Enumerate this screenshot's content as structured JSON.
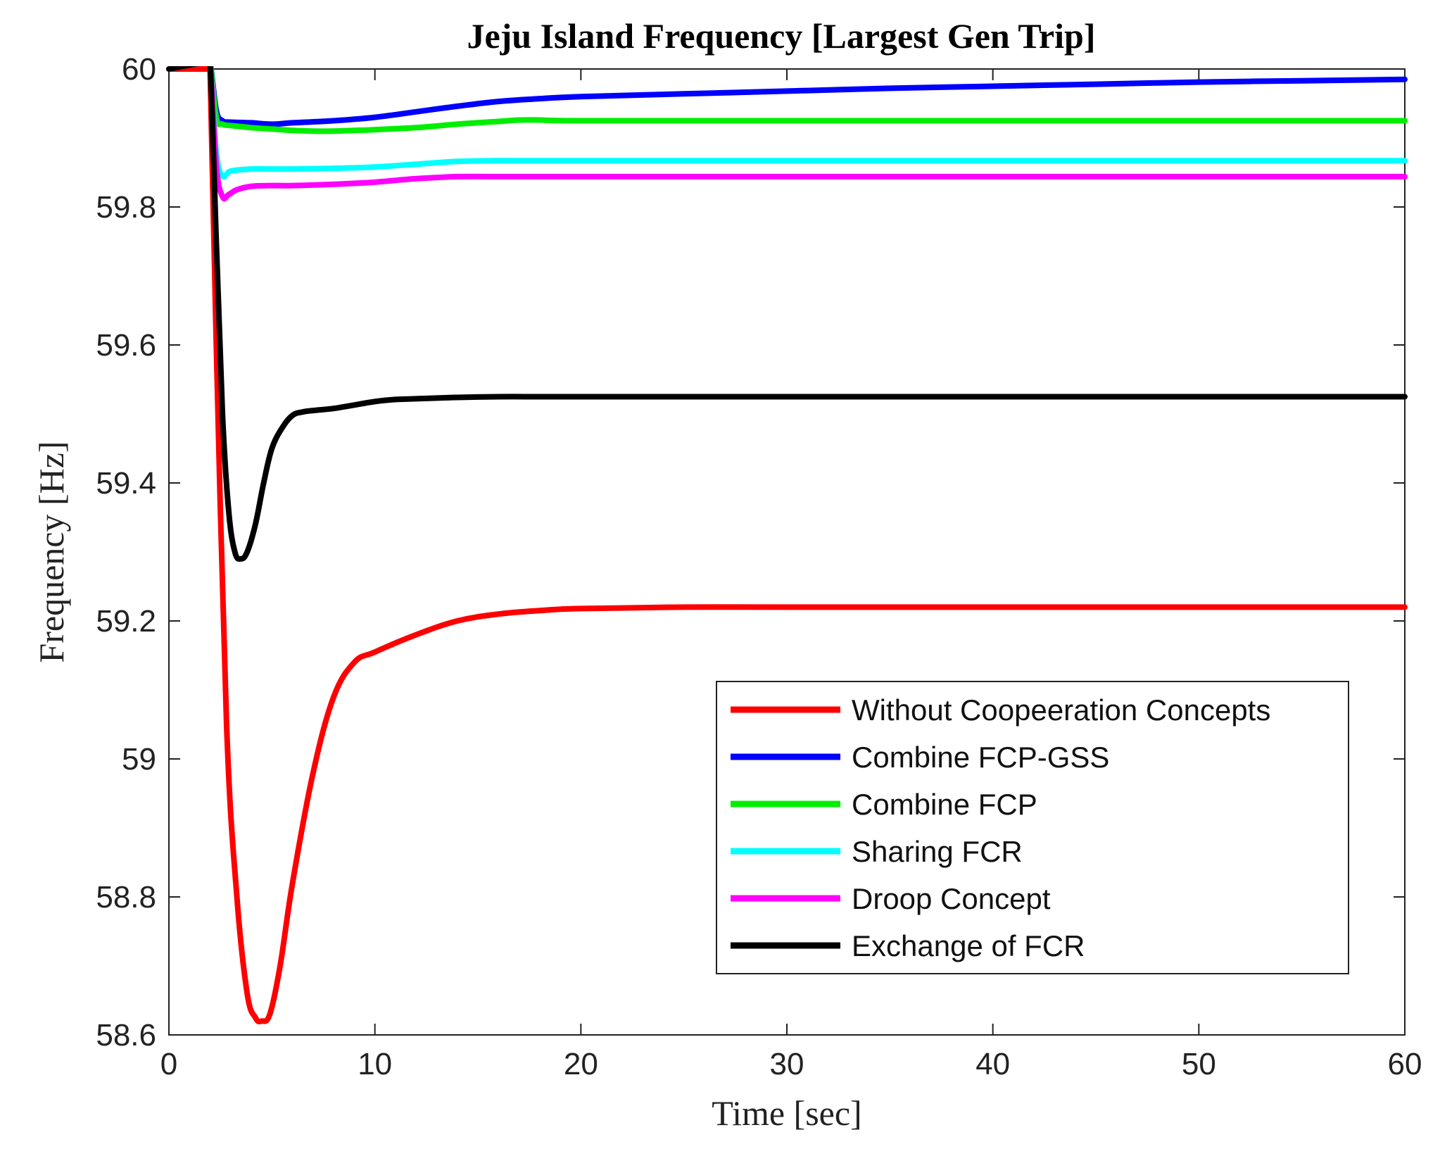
{
  "chart_data": {
    "type": "line",
    "title": "Jeju Island Frequency [Largest Gen Trip]",
    "xlabel": "Time [sec]",
    "ylabel": "Frequency [Hz]",
    "xlim": [
      0,
      60
    ],
    "ylim": [
      58.6,
      60.0
    ],
    "xticks": [
      0,
      10,
      20,
      30,
      40,
      50,
      60
    ],
    "xtick_labels": [
      "0",
      "10",
      "20",
      "30",
      "40",
      "50",
      "60"
    ],
    "yticks": [
      58.6,
      58.8,
      59.0,
      59.2,
      59.4,
      59.6,
      59.8,
      60.0
    ],
    "ytick_labels": [
      "58.6",
      "58.8",
      "59",
      "59.2",
      "59.4",
      "59.6",
      "59.8",
      "60"
    ],
    "grid": false,
    "legend_position": "bottom-right",
    "series": [
      {
        "name": "Without Coopeeration Concepts",
        "color": "#ff0000",
        "x": [
          0,
          1.8,
          2.0,
          2.3,
          2.8,
          3.3,
          3.8,
          4.2,
          4.5,
          4.9,
          5.4,
          6.0,
          7.0,
          8.0,
          9.0,
          10.0,
          12.0,
          14.0,
          16.0,
          18.0,
          20.0,
          25.0,
          30.0,
          40.0,
          50.0,
          60.0
        ],
        "y": [
          60.0,
          60.0,
          60.0,
          59.6,
          59.05,
          58.8,
          58.66,
          58.625,
          58.62,
          58.63,
          58.7,
          58.82,
          58.98,
          59.09,
          59.14,
          59.155,
          59.18,
          59.2,
          59.21,
          59.215,
          59.218,
          59.22,
          59.22,
          59.22,
          59.22,
          59.22
        ]
      },
      {
        "name": "Combine FCP-GSS",
        "color": "#0000ff",
        "x": [
          0,
          1.8,
          2.0,
          2.3,
          2.6,
          3.0,
          4.0,
          5.0,
          6.0,
          8.0,
          10.0,
          12.0,
          14.0,
          16.0,
          18.0,
          20.0,
          25.0,
          30.0,
          35.0,
          40.0,
          45.0,
          50.0,
          55.0,
          60.0
        ],
        "y": [
          60.0,
          60.01,
          60.01,
          59.94,
          59.925,
          59.923,
          59.922,
          59.92,
          59.922,
          59.925,
          59.93,
          59.938,
          59.946,
          59.953,
          59.957,
          59.96,
          59.964,
          59.968,
          59.972,
          59.975,
          59.978,
          59.981,
          59.983,
          59.985
        ]
      },
      {
        "name": "Combine FCP",
        "color": "#00ee00",
        "x": [
          0,
          1.8,
          2.0,
          2.3,
          2.6,
          3.0,
          4.0,
          5.0,
          6.0,
          7.0,
          8.0,
          9.0,
          10.0,
          12.0,
          14.0,
          16.0,
          17.0,
          18.0,
          20.0,
          30.0,
          40.0,
          50.0,
          60.0
        ],
        "y": [
          60.0,
          60.01,
          60.01,
          59.93,
          59.92,
          59.918,
          59.915,
          59.913,
          59.911,
          59.91,
          59.91,
          59.911,
          59.912,
          59.915,
          59.92,
          59.924,
          59.926,
          59.926,
          59.925,
          59.925,
          59.925,
          59.925,
          59.925
        ]
      },
      {
        "name": "Sharing FCR",
        "color": "#00ffff",
        "x": [
          0,
          1.8,
          2.0,
          2.3,
          2.6,
          3.0,
          4.0,
          5.0,
          6.0,
          8.0,
          10.0,
          12.0,
          14.0,
          16.0,
          20.0,
          30.0,
          40.0,
          50.0,
          60.0
        ],
        "y": [
          60.0,
          60.01,
          60.01,
          59.88,
          59.845,
          59.852,
          59.855,
          59.855,
          59.855,
          59.856,
          59.858,
          59.862,
          59.866,
          59.867,
          59.867,
          59.867,
          59.867,
          59.867,
          59.867
        ]
      },
      {
        "name": "Droop Concept",
        "color": "#ff00ff",
        "x": [
          0,
          1.8,
          2.0,
          2.3,
          2.6,
          2.9,
          3.3,
          4.0,
          5.0,
          6.0,
          8.0,
          10.0,
          12.0,
          14.0,
          16.0,
          20.0,
          30.0,
          40.0,
          50.0,
          60.0
        ],
        "y": [
          60.0,
          60.01,
          60.01,
          59.86,
          59.815,
          59.818,
          59.825,
          59.83,
          59.831,
          59.831,
          59.833,
          59.836,
          59.841,
          59.844,
          59.844,
          59.844,
          59.844,
          59.844,
          59.844,
          59.844
        ]
      },
      {
        "name": "Exchange of FCR",
        "color": "#000000",
        "x": [
          0,
          1.8,
          2.0,
          2.3,
          2.6,
          2.9,
          3.2,
          3.5,
          3.8,
          4.2,
          4.6,
          5.0,
          5.5,
          6.0,
          6.5,
          7.0,
          8.0,
          9.0,
          10.0,
          11.0,
          12.0,
          14.0,
          16.0,
          18.0,
          20.0,
          30.0,
          40.0,
          50.0,
          60.0
        ],
        "y": [
          60.0,
          60.01,
          60.01,
          59.75,
          59.5,
          59.36,
          59.3,
          59.29,
          59.3,
          59.34,
          59.4,
          59.45,
          59.48,
          59.498,
          59.503,
          59.505,
          59.508,
          59.513,
          59.518,
          59.521,
          59.522,
          59.524,
          59.525,
          59.525,
          59.525,
          59.525,
          59.525,
          59.525,
          59.525
        ]
      }
    ]
  }
}
